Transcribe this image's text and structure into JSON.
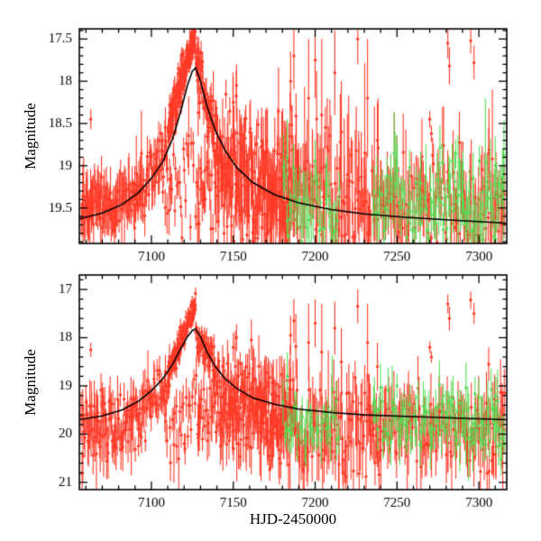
{
  "figure": {
    "background": "#ffffff",
    "frame_color": "#000000",
    "model_color": "#000000",
    "point_colors": {
      "red": "#ff3b28",
      "green": "#55dd55"
    }
  },
  "chart_data": [
    {
      "type": "scatter",
      "panel": "top",
      "title": "",
      "xlabel": "",
      "ylabel": "Magnitude",
      "xlim": [
        7056,
        7317
      ],
      "ylim_bottom_top": [
        19.92,
        17.38
      ],
      "xticks": [
        7100,
        7150,
        7200,
        7250,
        7300
      ],
      "yticks": [
        17.5,
        18,
        18.5,
        19,
        19.5
      ],
      "x_minor_step": 10,
      "y_minor_step": 0.1,
      "grid": false,
      "legend": null,
      "model_curve": [
        [
          7056,
          19.63
        ],
        [
          7070,
          19.56
        ],
        [
          7082,
          19.46
        ],
        [
          7092,
          19.32
        ],
        [
          7100,
          19.15
        ],
        [
          7107,
          18.95
        ],
        [
          7113,
          18.68
        ],
        [
          7118,
          18.35
        ],
        [
          7122,
          18.05
        ],
        [
          7125,
          17.88
        ],
        [
          7127,
          17.84
        ],
        [
          7130,
          18.0
        ],
        [
          7134,
          18.3
        ],
        [
          7139,
          18.58
        ],
        [
          7145,
          18.82
        ],
        [
          7152,
          19.02
        ],
        [
          7162,
          19.2
        ],
        [
          7175,
          19.34
        ],
        [
          7190,
          19.44
        ],
        [
          7210,
          19.52
        ],
        [
          7230,
          19.57
        ],
        [
          7255,
          19.61
        ],
        [
          7280,
          19.64
        ],
        [
          7317,
          19.68
        ]
      ],
      "clusters": [
        {
          "n": 60,
          "x": [
            7057,
            7080
          ],
          "y": [
            19.5,
            19.45
          ],
          "sd": 0.14,
          "err": [
            0.15,
            0.35
          ],
          "series": "red"
        },
        {
          "n": 45,
          "x": [
            7080,
            7097
          ],
          "y": [
            19.45,
            19.25
          ],
          "sd": 0.16,
          "err": [
            0.12,
            0.3
          ],
          "series": "red"
        },
        {
          "n": 35,
          "x": [
            7097,
            7110
          ],
          "y": [
            19.15,
            18.75
          ],
          "sd": 0.2,
          "err": [
            0.1,
            0.25
          ],
          "series": "red"
        },
        {
          "n": 70,
          "x": [
            7110,
            7119
          ],
          "y": [
            18.6,
            17.95
          ],
          "sd": 0.12,
          "err": [
            0.06,
            0.15
          ],
          "series": "red"
        },
        {
          "n": 80,
          "x": [
            7119,
            7127
          ],
          "y": [
            17.95,
            17.42
          ],
          "sd": 0.1,
          "err": [
            0.05,
            0.12
          ],
          "series": "red"
        },
        {
          "n": 30,
          "x": [
            7108,
            7130
          ],
          "y": [
            19.3,
            19.1
          ],
          "sd": 0.3,
          "err": [
            0.12,
            0.3
          ],
          "series": "red"
        },
        {
          "n": 60,
          "x": [
            7127,
            7140
          ],
          "y": [
            17.78,
            18.65
          ],
          "sd": 0.18,
          "err": [
            0.07,
            0.2
          ],
          "series": "red"
        },
        {
          "n": 40,
          "x": [
            7128,
            7150
          ],
          "y": [
            19.25,
            19.15
          ],
          "sd": 0.3,
          "err": [
            0.15,
            0.35
          ],
          "series": "red"
        },
        {
          "n": 80,
          "x": [
            7140,
            7168
          ],
          "y": [
            18.9,
            19.1
          ],
          "sd": 0.35,
          "err": [
            0.15,
            0.45
          ],
          "series": "red"
        },
        {
          "n": 70,
          "x": [
            7168,
            7190
          ],
          "y": [
            19.15,
            19.2
          ],
          "sd": 0.4,
          "err": [
            0.2,
            0.55
          ],
          "series": "red"
        },
        {
          "n": 50,
          "x": [
            7150,
            7185
          ],
          "y": [
            19.55,
            19.5
          ],
          "sd": 0.28,
          "err": [
            0.15,
            0.4
          ],
          "series": "red"
        },
        {
          "n": 90,
          "x": [
            7190,
            7240
          ],
          "y": [
            19.3,
            19.4
          ],
          "sd": 0.38,
          "err": [
            0.2,
            0.6
          ],
          "series": "red"
        },
        {
          "n": 70,
          "x": [
            7240,
            7285
          ],
          "y": [
            19.45,
            19.45
          ],
          "sd": 0.28,
          "err": [
            0.2,
            0.5
          ],
          "series": "red"
        },
        {
          "n": 55,
          "x": [
            7285,
            7316
          ],
          "y": [
            19.45,
            19.5
          ],
          "sd": 0.3,
          "err": [
            0.2,
            0.5
          ],
          "series": "red"
        },
        {
          "n": 35,
          "x": [
            7180,
            7215
          ],
          "y": [
            19.45,
            19.45
          ],
          "sd": 0.22,
          "err": [
            0.15,
            0.4
          ],
          "series": "green"
        },
        {
          "n": 45,
          "x": [
            7235,
            7275
          ],
          "y": [
            19.35,
            19.4
          ],
          "sd": 0.22,
          "err": [
            0.15,
            0.4
          ],
          "series": "green"
        },
        {
          "n": 55,
          "x": [
            7275,
            7316
          ],
          "y": [
            19.4,
            19.45
          ],
          "sd": 0.25,
          "err": [
            0.15,
            0.45
          ],
          "series": "green"
        }
      ],
      "outliers": [
        [
          7063,
          18.45,
          0.12,
          "red"
        ],
        [
          7150,
          18.25,
          0.3,
          "red"
        ],
        [
          7152,
          18.05,
          0.25,
          "red"
        ],
        [
          7185,
          18.0,
          0.35,
          "red"
        ],
        [
          7187,
          17.7,
          0.4,
          "red"
        ],
        [
          7196,
          18.2,
          0.7,
          "red"
        ],
        [
          7200,
          17.75,
          0.45,
          "red"
        ],
        [
          7204,
          18.4,
          0.9,
          "red"
        ],
        [
          7212,
          17.9,
          0.5,
          "red"
        ],
        [
          7216,
          18.6,
          0.6,
          "red"
        ],
        [
          7226,
          17.5,
          0.3,
          "red"
        ],
        [
          7232,
          18.2,
          0.7,
          "red"
        ],
        [
          7238,
          18.7,
          0.45,
          "red"
        ],
        [
          7270,
          18.45,
          0.1,
          "red"
        ],
        [
          7271,
          18.62,
          0.1,
          "red"
        ],
        [
          7281,
          17.55,
          0.18,
          "red"
        ],
        [
          7282,
          17.82,
          0.22,
          "red"
        ],
        [
          7295,
          17.52,
          0.15,
          "red"
        ],
        [
          7297,
          17.78,
          0.2,
          "red"
        ],
        [
          7306,
          18.85,
          0.3,
          "red"
        ],
        [
          7183,
          18.9,
          0.45,
          "green"
        ],
        [
          7250,
          19.05,
          0.2,
          "green"
        ],
        [
          7310,
          19.0,
          0.35,
          "green"
        ]
      ]
    },
    {
      "type": "scatter",
      "panel": "bottom",
      "title": "",
      "xlabel": "HJD-2450000",
      "ylabel": "Magnitude",
      "xlim": [
        7056,
        7317
      ],
      "ylim_bottom_top": [
        21.15,
        16.7
      ],
      "xticks": [
        7100,
        7150,
        7200,
        7250,
        7300
      ],
      "yticks": [
        17,
        18,
        19,
        20,
        21
      ],
      "x_minor_step": 10,
      "y_minor_step": 0.2,
      "grid": false,
      "legend": null,
      "model_curve": [
        [
          7056,
          19.7
        ],
        [
          7070,
          19.62
        ],
        [
          7082,
          19.5
        ],
        [
          7092,
          19.32
        ],
        [
          7100,
          19.1
        ],
        [
          7107,
          18.85
        ],
        [
          7113,
          18.55
        ],
        [
          7118,
          18.22
        ],
        [
          7122,
          17.98
        ],
        [
          7125,
          17.85
        ],
        [
          7127,
          17.82
        ],
        [
          7130,
          17.98
        ],
        [
          7134,
          18.3
        ],
        [
          7139,
          18.6
        ],
        [
          7145,
          18.85
        ],
        [
          7152,
          19.05
        ],
        [
          7162,
          19.25
        ],
        [
          7175,
          19.38
        ],
        [
          7190,
          19.48
        ],
        [
          7210,
          19.55
        ],
        [
          7230,
          19.6
        ],
        [
          7255,
          19.63
        ],
        [
          7280,
          19.66
        ],
        [
          7317,
          19.7
        ]
      ],
      "clusters": [
        {
          "n": 60,
          "x": [
            7057,
            7080
          ],
          "y": [
            19.95,
            19.9
          ],
          "sd": 0.38,
          "err": [
            0.25,
            0.55
          ],
          "series": "red"
        },
        {
          "n": 45,
          "x": [
            7080,
            7097
          ],
          "y": [
            19.85,
            19.55
          ],
          "sd": 0.35,
          "err": [
            0.2,
            0.5
          ],
          "series": "red"
        },
        {
          "n": 35,
          "x": [
            7097,
            7110
          ],
          "y": [
            19.4,
            18.9
          ],
          "sd": 0.28,
          "err": [
            0.15,
            0.4
          ],
          "series": "red"
        },
        {
          "n": 70,
          "x": [
            7110,
            7119
          ],
          "y": [
            18.75,
            18.0
          ],
          "sd": 0.15,
          "err": [
            0.08,
            0.2
          ],
          "series": "red"
        },
        {
          "n": 80,
          "x": [
            7119,
            7127
          ],
          "y": [
            18.0,
            17.28
          ],
          "sd": 0.12,
          "err": [
            0.06,
            0.15
          ],
          "series": "red"
        },
        {
          "n": 30,
          "x": [
            7108,
            7130
          ],
          "y": [
            19.8,
            19.5
          ],
          "sd": 0.4,
          "err": [
            0.2,
            0.45
          ],
          "series": "red"
        },
        {
          "n": 60,
          "x": [
            7127,
            7142
          ],
          "y": [
            17.88,
            18.8
          ],
          "sd": 0.2,
          "err": [
            0.1,
            0.25
          ],
          "series": "red"
        },
        {
          "n": 40,
          "x": [
            7128,
            7150
          ],
          "y": [
            19.6,
            19.5
          ],
          "sd": 0.4,
          "err": [
            0.2,
            0.5
          ],
          "series": "red"
        },
        {
          "n": 80,
          "x": [
            7142,
            7168
          ],
          "y": [
            19.1,
            19.35
          ],
          "sd": 0.45,
          "err": [
            0.2,
            0.6
          ],
          "series": "red"
        },
        {
          "n": 70,
          "x": [
            7168,
            7190
          ],
          "y": [
            19.55,
            19.6
          ],
          "sd": 0.5,
          "err": [
            0.25,
            0.7
          ],
          "series": "red"
        },
        {
          "n": 50,
          "x": [
            7150,
            7185
          ],
          "y": [
            19.9,
            19.85
          ],
          "sd": 0.35,
          "err": [
            0.2,
            0.55
          ],
          "series": "red"
        },
        {
          "n": 90,
          "x": [
            7190,
            7240
          ],
          "y": [
            19.8,
            19.9
          ],
          "sd": 0.5,
          "err": [
            0.3,
            0.8
          ],
          "series": "red"
        },
        {
          "n": 70,
          "x": [
            7240,
            7285
          ],
          "y": [
            19.9,
            19.9
          ],
          "sd": 0.38,
          "err": [
            0.25,
            0.7
          ],
          "series": "red"
        },
        {
          "n": 55,
          "x": [
            7285,
            7316
          ],
          "y": [
            19.9,
            19.95
          ],
          "sd": 0.4,
          "err": [
            0.25,
            0.7
          ],
          "series": "red"
        },
        {
          "n": 35,
          "x": [
            7180,
            7215
          ],
          "y": [
            19.75,
            19.75
          ],
          "sd": 0.3,
          "err": [
            0.2,
            0.55
          ],
          "series": "green"
        },
        {
          "n": 45,
          "x": [
            7235,
            7275
          ],
          "y": [
            19.7,
            19.75
          ],
          "sd": 0.3,
          "err": [
            0.2,
            0.55
          ],
          "series": "green"
        },
        {
          "n": 55,
          "x": [
            7275,
            7316
          ],
          "y": [
            19.75,
            19.8
          ],
          "sd": 0.33,
          "err": [
            0.2,
            0.6
          ],
          "series": "green"
        }
      ],
      "outliers": [
        [
          7063,
          18.25,
          0.15,
          "red"
        ],
        [
          7150,
          18.2,
          0.3,
          "red"
        ],
        [
          7152,
          18.0,
          0.28,
          "red"
        ],
        [
          7185,
          17.95,
          0.4,
          "red"
        ],
        [
          7187,
          17.65,
          0.45,
          "red"
        ],
        [
          7196,
          18.1,
          0.8,
          "red"
        ],
        [
          7200,
          17.7,
          0.5,
          "red"
        ],
        [
          7204,
          18.3,
          1.0,
          "red"
        ],
        [
          7212,
          17.8,
          0.55,
          "red"
        ],
        [
          7216,
          18.5,
          0.7,
          "red"
        ],
        [
          7226,
          17.35,
          0.35,
          "red"
        ],
        [
          7232,
          18.1,
          0.8,
          "red"
        ],
        [
          7238,
          18.6,
          0.5,
          "red"
        ],
        [
          7270,
          18.2,
          0.12,
          "red"
        ],
        [
          7271,
          18.4,
          0.12,
          "red"
        ],
        [
          7281,
          17.3,
          0.2,
          "red"
        ],
        [
          7282,
          17.6,
          0.25,
          "red"
        ],
        [
          7295,
          17.22,
          0.18,
          "red"
        ],
        [
          7297,
          17.5,
          0.22,
          "red"
        ],
        [
          7306,
          18.55,
          0.35,
          "red"
        ],
        [
          7183,
          18.8,
          0.5,
          "green"
        ],
        [
          7250,
          19.0,
          0.25,
          "green"
        ],
        [
          7310,
          19.2,
          0.4,
          "green"
        ]
      ]
    }
  ]
}
